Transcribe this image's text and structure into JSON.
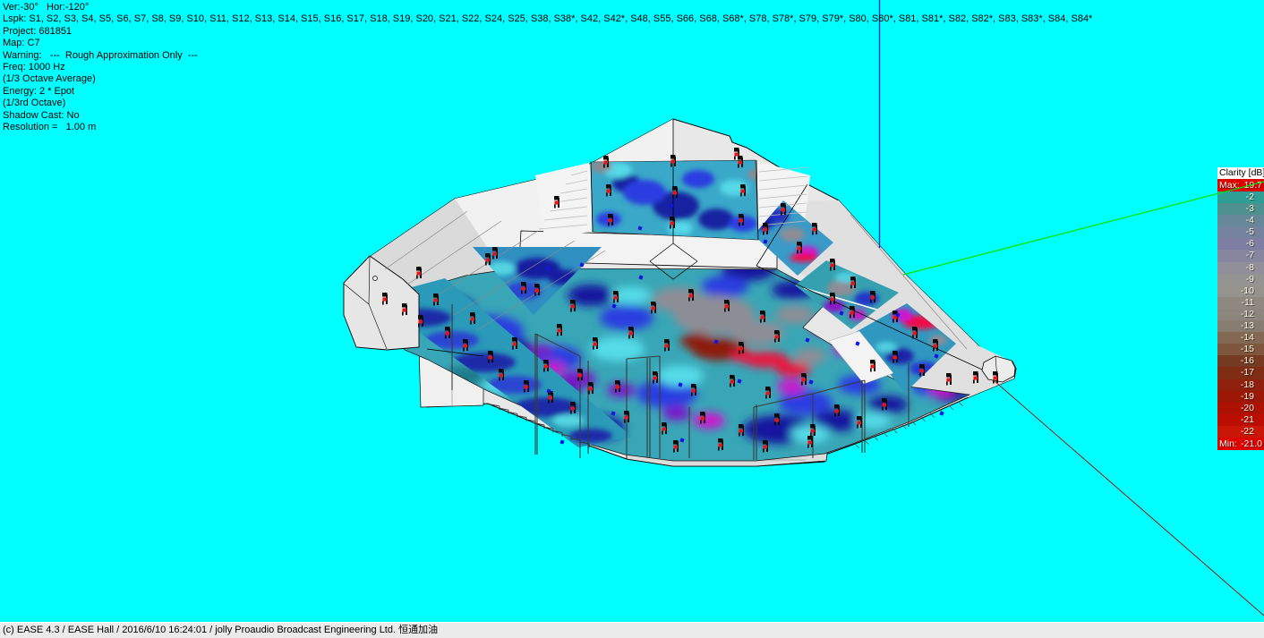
{
  "info_panel": {
    "lines": [
      "Ver:-30°   Hor:-120°",
      "Lspk: S1, S2, S3, S4, S5, S6, S7, S8, S9, S10, S11, S12, S13, S14, S15, S16, S17, S18, S19, S20, S21, S22, S24, S25, S38, S38*, S42, S42*, S48, S55, S66, S68, S68*, S78, S78*, S79, S79*, S80, S80*, S81, S81*, S82, S82*, S83, S83*, S84, S84*",
      "Project: 681851",
      "Map: C7",
      "Warning:   ---  Rough Approximation Only  ---",
      "Freq: 1000 Hz",
      "(1/3 Octave Average)",
      "Energy: 2 * Epot",
      "(1/3rd Octave)",
      "Shadow Cast: No",
      "Resolution =   1.00 m"
    ]
  },
  "legend": {
    "title": "Clarity [dB]",
    "max_label": "Max:",
    "max_value": "19.7",
    "min_label": "Min:",
    "min_value": "-21.0",
    "extreme_bg": "#dd0000",
    "rows": [
      {
        "label": "-2",
        "color": "#2f9e94"
      },
      {
        "label": "-3",
        "color": "#4f918f"
      },
      {
        "label": "-4",
        "color": "#668898"
      },
      {
        "label": "-5",
        "color": "#74829e"
      },
      {
        "label": "-6",
        "color": "#7d7ea2"
      },
      {
        "label": "-7",
        "color": "#87869e"
      },
      {
        "label": "-8",
        "color": "#8f8e99"
      },
      {
        "label": "-9",
        "color": "#939392"
      },
      {
        "label": "-10",
        "color": "#95938b"
      },
      {
        "label": "-11",
        "color": "#8e8881"
      },
      {
        "label": "-12",
        "color": "#8b857e"
      },
      {
        "label": "-13",
        "color": "#877c70"
      },
      {
        "label": "-14",
        "color": "#836953"
      },
      {
        "label": "-15",
        "color": "#7e553d"
      },
      {
        "label": "-16",
        "color": "#753a22"
      },
      {
        "label": "-17",
        "color": "#7f2c14"
      },
      {
        "label": "-18",
        "color": "#8e200d"
      },
      {
        "label": "-19",
        "color": "#9d1706"
      },
      {
        "label": "-20",
        "color": "#ad1103"
      },
      {
        "label": "-21",
        "color": "#bc0d02"
      },
      {
        "label": "-22",
        "color": "#c91607"
      }
    ]
  },
  "status_bar": {
    "text": "(c) EASE 4.3  / EASE Hall  / 2016/6/10 16:24:01 / jolly Proaudio Broadcast Engineering Ltd. 恒通加油"
  },
  "scene": {
    "background": "#00ffff",
    "axis_blue": "#1a30c8",
    "axis_green": "#00e408",
    "axis_red": "#8a2018"
  }
}
